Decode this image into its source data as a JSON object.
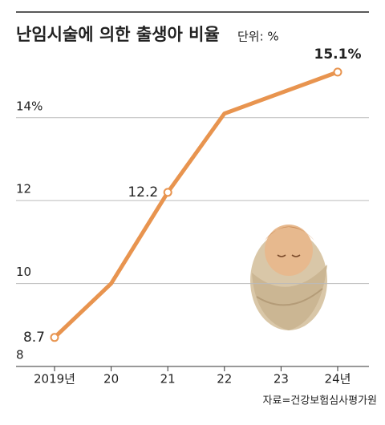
{
  "chart_data": {
    "type": "line",
    "title": "난임시술에 의한 출생아 비율",
    "subtitle": "단위: %",
    "categories": [
      "2019년",
      "20",
      "21",
      "22",
      "23",
      "24년"
    ],
    "series": [
      {
        "name": "출생아 비율",
        "color": "#e8944f",
        "values": [
          8.7,
          10,
          12.2,
          14.1,
          14.6,
          15.1
        ],
        "value_labels": [
          "8.7",
          null,
          "12.2",
          null,
          null,
          "15.1%"
        ]
      }
    ],
    "ylim": [
      8,
      16.5
    ],
    "yticks": [
      8,
      10,
      12,
      {
        "value": 14,
        "label": "14%"
      }
    ],
    "grid": true,
    "source": "자료=건강보험심사평가원"
  }
}
